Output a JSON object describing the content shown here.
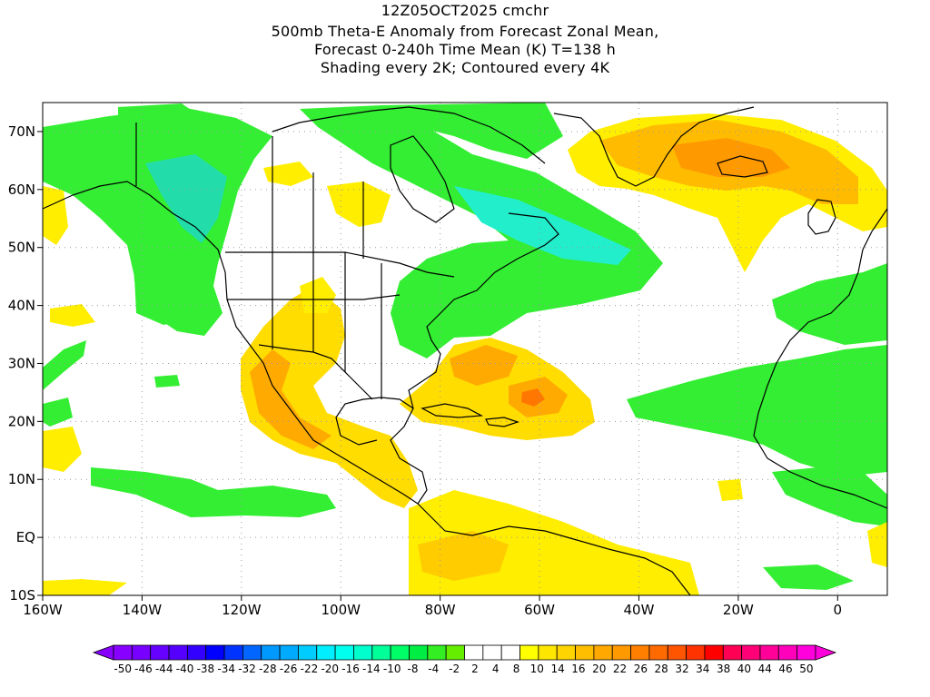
{
  "titles": {
    "line1": "12Z05OCT2025 cmchr",
    "line2": "500mb Theta-E Anomaly from Forecast Zonal Mean,",
    "line3": "Forecast 0-240h Time Mean (K) T=138 h",
    "line4": "Shading every 2K; Contoured every 4K"
  },
  "map": {
    "lon_range": [
      -160,
      10
    ],
    "lat_range": [
      -10,
      75
    ],
    "lon_ticks": [
      {
        "value": -160,
        "label": "160W"
      },
      {
        "value": -140,
        "label": "140W"
      },
      {
        "value": -120,
        "label": "120W"
      },
      {
        "value": -100,
        "label": "100W"
      },
      {
        "value": -80,
        "label": "80W"
      },
      {
        "value": -60,
        "label": "60W"
      },
      {
        "value": -40,
        "label": "40W"
      },
      {
        "value": -20,
        "label": "20W"
      },
      {
        "value": 0,
        "label": "0"
      }
    ],
    "lat_ticks": [
      {
        "value": 70,
        "label": "70N"
      },
      {
        "value": 60,
        "label": "60N"
      },
      {
        "value": 50,
        "label": "50N"
      },
      {
        "value": 40,
        "label": "40N"
      },
      {
        "value": 30,
        "label": "30N"
      },
      {
        "value": 20,
        "label": "20N"
      },
      {
        "value": 10,
        "label": "10N"
      },
      {
        "value": 0,
        "label": "EQ"
      },
      {
        "value": -10,
        "label": "10S"
      }
    ],
    "colors": {
      "green_light": "#33ee33",
      "green": "#22dd55",
      "cyan": "#22eecc",
      "yellow": "#ffee00",
      "yellow_orange": "#ffcc00",
      "orange": "#ffaa00",
      "orange_dark": "#ff8800",
      "red_orange": "#ff6600",
      "coast": "#000000",
      "grid": "#999999"
    }
  },
  "colorbar": {
    "labels": [
      "-50",
      "-46",
      "-44",
      "-40",
      "-38",
      "-34",
      "-32",
      "-28",
      "-26",
      "-22",
      "-20",
      "-16",
      "-14",
      "-10",
      "-8",
      "-4",
      "-2",
      "2",
      "4",
      "8",
      "10",
      "14",
      "16",
      "20",
      "22",
      "26",
      "28",
      "32",
      "34",
      "38",
      "40",
      "44",
      "46",
      "50"
    ],
    "colors": [
      "#8800ff",
      "#7700ff",
      "#6600ff",
      "#5500ff",
      "#3300ff",
      "#0000ff",
      "#0033ff",
      "#0066ff",
      "#0099ff",
      "#00aaff",
      "#00ccff",
      "#00eeff",
      "#00ffee",
      "#00ffcc",
      "#00ff99",
      "#00ff66",
      "#00ee44",
      "#33ee22",
      "#66ee00",
      "#ffffff",
      "#ffffff",
      "#ffffff",
      "#ffff00",
      "#ffe600",
      "#ffd400",
      "#ffbf00",
      "#ffa800",
      "#ff9900",
      "#ff8000",
      "#ff6a00",
      "#ff5500",
      "#ff3300",
      "#ff0000",
      "#ff0055",
      "#ff0077",
      "#ff0099",
      "#ff00bb",
      "#ff00dd"
    ]
  }
}
